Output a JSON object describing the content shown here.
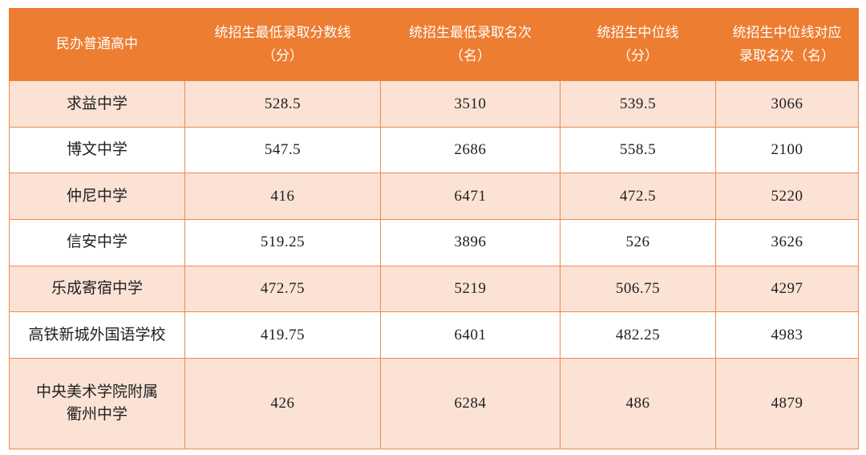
{
  "table": {
    "headers": [
      {
        "lines": [
          "民办普通高中"
        ]
      },
      {
        "lines": [
          "统招生最低录取分数线",
          "（分）"
        ]
      },
      {
        "lines": [
          "统招生最低录取名次",
          "（名）"
        ]
      },
      {
        "lines": [
          "统招生中位线",
          "（分）"
        ]
      },
      {
        "lines": [
          "统招生中位线对应",
          "录取名次（名）"
        ]
      }
    ],
    "rows": [
      {
        "school_lines": [
          "求益中学"
        ],
        "values": [
          "528.5",
          "3510",
          "539.5",
          "3066"
        ]
      },
      {
        "school_lines": [
          "博文中学"
        ],
        "values": [
          "547.5",
          "2686",
          "558.5",
          "2100"
        ]
      },
      {
        "school_lines": [
          "仲尼中学"
        ],
        "values": [
          "416",
          "6471",
          "472.5",
          "5220"
        ]
      },
      {
        "school_lines": [
          "信安中学"
        ],
        "values": [
          "519.25",
          "3896",
          "526",
          "3626"
        ]
      },
      {
        "school_lines": [
          "乐成寄宿中学"
        ],
        "values": [
          "472.75",
          "5219",
          "506.75",
          "4297"
        ]
      },
      {
        "school_lines": [
          "高铁新城外国语学校"
        ],
        "values": [
          "419.75",
          "6401",
          "482.25",
          "4983"
        ]
      },
      {
        "school_lines": [
          "中央美术学院附属",
          "衢州中学"
        ],
        "values": [
          "426",
          "6284",
          "486",
          "4879"
        ]
      }
    ]
  },
  "colors": {
    "header_bg": "#ED7D31",
    "header_text": "#ffffff",
    "row_alt_bg": "#FBE2D5",
    "row_bg": "#ffffff",
    "border": "#EE8A4D",
    "body_text": "#1f1f1f"
  },
  "chart_data": {
    "type": "table",
    "title": "民办普通高中统招生录取分数线与名次",
    "columns": [
      "民办普通高中",
      "统招生最低录取分数线（分）",
      "统招生最低录取名次（名）",
      "统招生中位线（分）",
      "统招生中位线对应录取名次（名）"
    ],
    "rows": [
      [
        "求益中学",
        528.5,
        3510,
        539.5,
        3066
      ],
      [
        "博文中学",
        547.5,
        2686,
        558.5,
        2100
      ],
      [
        "仲尼中学",
        416,
        6471,
        472.5,
        5220
      ],
      [
        "信安中学",
        519.25,
        3896,
        526,
        3626
      ],
      [
        "乐成寄宿中学",
        472.75,
        5219,
        506.75,
        4297
      ],
      [
        "高铁新城外国语学校",
        419.75,
        6401,
        482.25,
        4983
      ],
      [
        "中央美术学院附属衢州中学",
        426,
        6284,
        486,
        4879
      ]
    ]
  }
}
